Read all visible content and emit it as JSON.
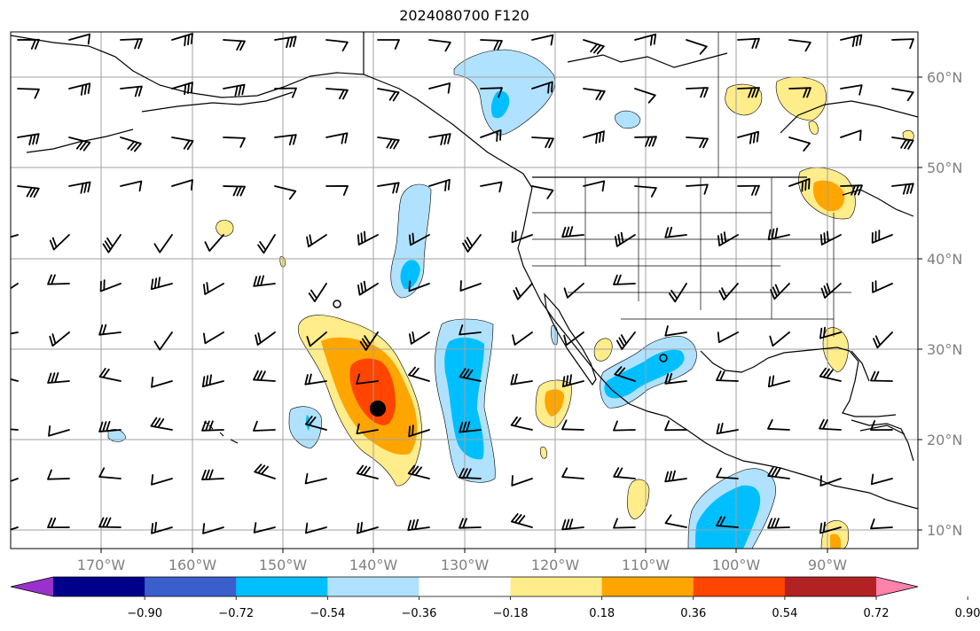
{
  "title": "2024080700 F120",
  "lat_labels": [
    "60°N",
    "50°N",
    "40°N",
    "30°N",
    "20°N",
    "10°N"
  ],
  "lon_labels": [
    "170°W",
    "160°W",
    "150°W",
    "140°W",
    "130°W",
    "120°W",
    "110°W",
    "100°W",
    "90°W"
  ],
  "colorbar": {
    "colors": [
      "#9932cc",
      "#00008b",
      "#3a5fcd",
      "#00bfff",
      "#b0e2ff",
      "#ffffff",
      "#ffec8b",
      "#ffa500",
      "#ff4500",
      "#b22222",
      "#ff82ab"
    ],
    "tick_labels": [
      "−0.90",
      "−0.72",
      "−0.54",
      "−0.36",
      "−0.18",
      "0.18",
      "0.36",
      "0.54",
      "0.72",
      "0.90"
    ]
  },
  "colors": {
    "frame": "#000000",
    "grid": "#a0a0a0",
    "coast": "#000000",
    "pale_yellow": "#ffec8b",
    "orange": "#ffa500",
    "red_orange": "#ff4500",
    "light_blue": "#b0e2ff",
    "deep_sky_blue": "#00bfff"
  },
  "storm_marker": {
    "lat": 23.5,
    "lon": -139.5
  }
}
